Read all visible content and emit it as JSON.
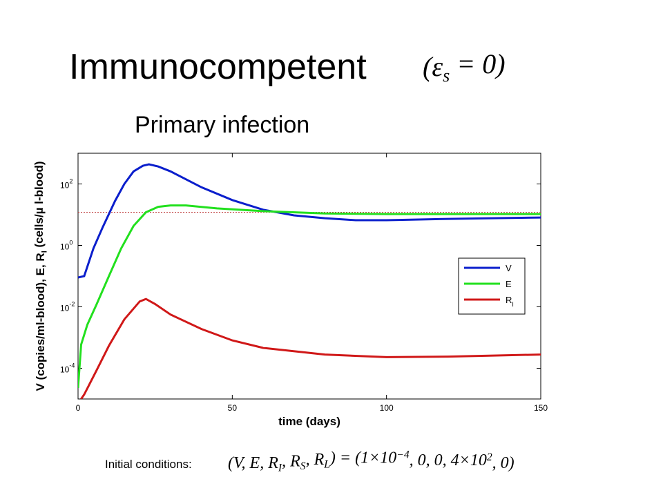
{
  "title": "Immunocompetent",
  "title_formula": [
    {
      "text": "(ε",
      "style": "normal"
    },
    {
      "text": "s",
      "style": "sub"
    },
    {
      "text": " = 0)",
      "style": "normal"
    }
  ],
  "subtitle": "Primary infection",
  "footer_label": "Initial conditions:",
  "footer_formula": [
    {
      "text": "(V, E, R",
      "style": "normal"
    },
    {
      "text": "I",
      "style": "sub"
    },
    {
      "text": ", R",
      "style": "normal"
    },
    {
      "text": "S",
      "style": "sub"
    },
    {
      "text": ", R",
      "style": "normal"
    },
    {
      "text": "L",
      "style": "sub"
    },
    {
      "text": ") = (1×10",
      "style": "normal"
    },
    {
      "text": "−4",
      "style": "sup"
    },
    {
      "text": ", 0, 0, 4×10",
      "style": "normal"
    },
    {
      "text": "2",
      "style": "sup"
    },
    {
      "text": ", 0)",
      "style": "normal"
    }
  ],
  "chart_data": {
    "type": "line",
    "xlabel": "time (days)",
    "ylabel": [
      {
        "text": "V (copies/ml-blood), E, R",
        "style": "normal"
      },
      {
        "text": "I",
        "style": "sub"
      },
      {
        "text": " (cells/µ l-blood)",
        "style": "normal"
      }
    ],
    "xlim": [
      0,
      150
    ],
    "xticks": [
      0,
      50,
      100,
      150
    ],
    "ylim": [
      1e-05,
      1000
    ],
    "log_y": true,
    "yticks": [
      {
        "value": 0.0001,
        "label": "10",
        "exponent": "-4"
      },
      {
        "value": 0.01,
        "label": "10",
        "exponent": "-2"
      },
      {
        "value": 1,
        "label": "10",
        "exponent": "0"
      },
      {
        "value": 100,
        "label": "10",
        "exponent": "2"
      }
    ],
    "reference_line": {
      "value": 12,
      "color": "#c04040"
    },
    "legend": "right",
    "series": [
      {
        "name": "V",
        "color": "#0a1ecc",
        "x": [
          0,
          2,
          5,
          8,
          12,
          15,
          18,
          21,
          23,
          26,
          30,
          40,
          50,
          60,
          70,
          80,
          90,
          100,
          120,
          150
        ],
        "values": [
          0.09,
          0.1,
          0.8,
          3.9,
          28,
          100,
          257,
          390,
          435,
          370,
          257,
          78,
          30,
          14.5,
          9.5,
          7.7,
          6.6,
          6.6,
          7.3,
          8.1
        ]
      },
      {
        "name": "E",
        "color": "#22e01e",
        "x": [
          0,
          1,
          3,
          6,
          10,
          14,
          18,
          22,
          26,
          30,
          35,
          45,
          60,
          80,
          100,
          150
        ],
        "values": [
          2.3e-05,
          0.00059,
          0.0026,
          0.012,
          0.1,
          0.8,
          4.3,
          12,
          18,
          20,
          20,
          16,
          13,
          11,
          10.5,
          10.5
        ]
      },
      {
        "name": "R",
        "subscript": "I",
        "color": "#d01818",
        "x": [
          1,
          2,
          6,
          10,
          15,
          20,
          22,
          25,
          30,
          40,
          50,
          60,
          80,
          100,
          120,
          150
        ],
        "values": [
          1e-05,
          1.4e-05,
          8.5e-05,
          0.00054,
          0.0039,
          0.015,
          0.018,
          0.0123,
          0.0056,
          0.0019,
          0.00081,
          0.00046,
          0.00028,
          0.00023,
          0.00024,
          0.00028
        ]
      }
    ]
  }
}
